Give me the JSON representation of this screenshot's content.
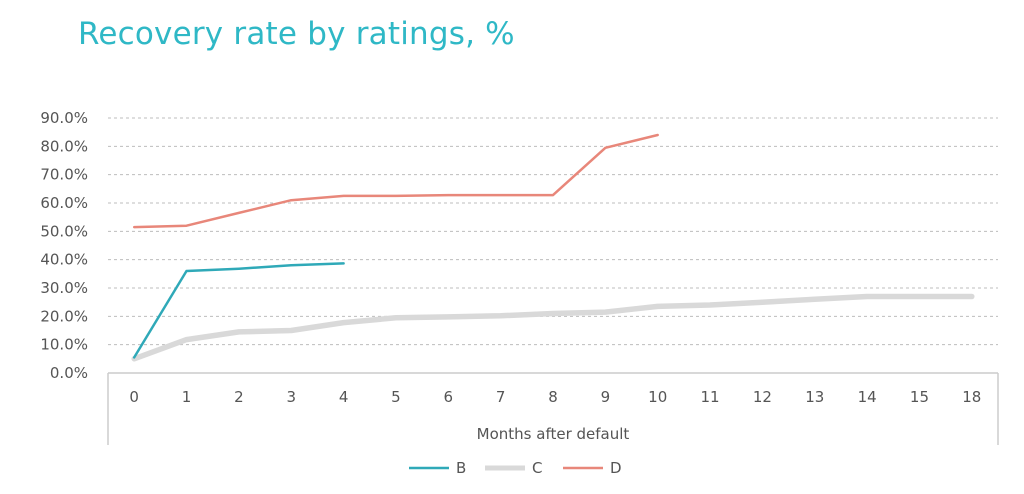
{
  "chart_data": {
    "type": "line",
    "title": "Recovery rate by ratings, %",
    "xlabel": "Months after default",
    "ylabel": "",
    "categories": [
      "0",
      "1",
      "2",
      "3",
      "4",
      "5",
      "6",
      "7",
      "8",
      "9",
      "10",
      "11",
      "12",
      "13",
      "14",
      "15",
      "18"
    ],
    "y_ticks": [
      "0.0%",
      "10.0%",
      "20.0%",
      "30.0%",
      "40.0%",
      "50.0%",
      "60.0%",
      "70.0%",
      "80.0%",
      "90.0%"
    ],
    "ylim": [
      0,
      90
    ],
    "grid": true,
    "legend_position": "bottom",
    "series": [
      {
        "name": "B",
        "color": "#2fa9b8",
        "values": [
          5.5,
          36.0,
          36.8,
          38.0,
          38.7,
          null,
          null,
          null,
          null,
          null,
          null,
          null,
          null,
          null,
          null,
          null,
          null
        ]
      },
      {
        "name": "C",
        "color": "#d9d9d9",
        "values": [
          5.0,
          11.8,
          14.5,
          15.0,
          17.8,
          19.5,
          19.8,
          20.2,
          21.0,
          21.5,
          23.5,
          24.0,
          25.0,
          26.0,
          27.0,
          27.0,
          27.0
        ]
      },
      {
        "name": "D",
        "color": "#e8877a",
        "values": [
          51.5,
          52.0,
          56.5,
          61.0,
          62.5,
          62.5,
          62.8,
          62.8,
          62.8,
          79.5,
          84.0,
          null,
          null,
          null,
          null,
          null,
          null
        ]
      }
    ]
  }
}
